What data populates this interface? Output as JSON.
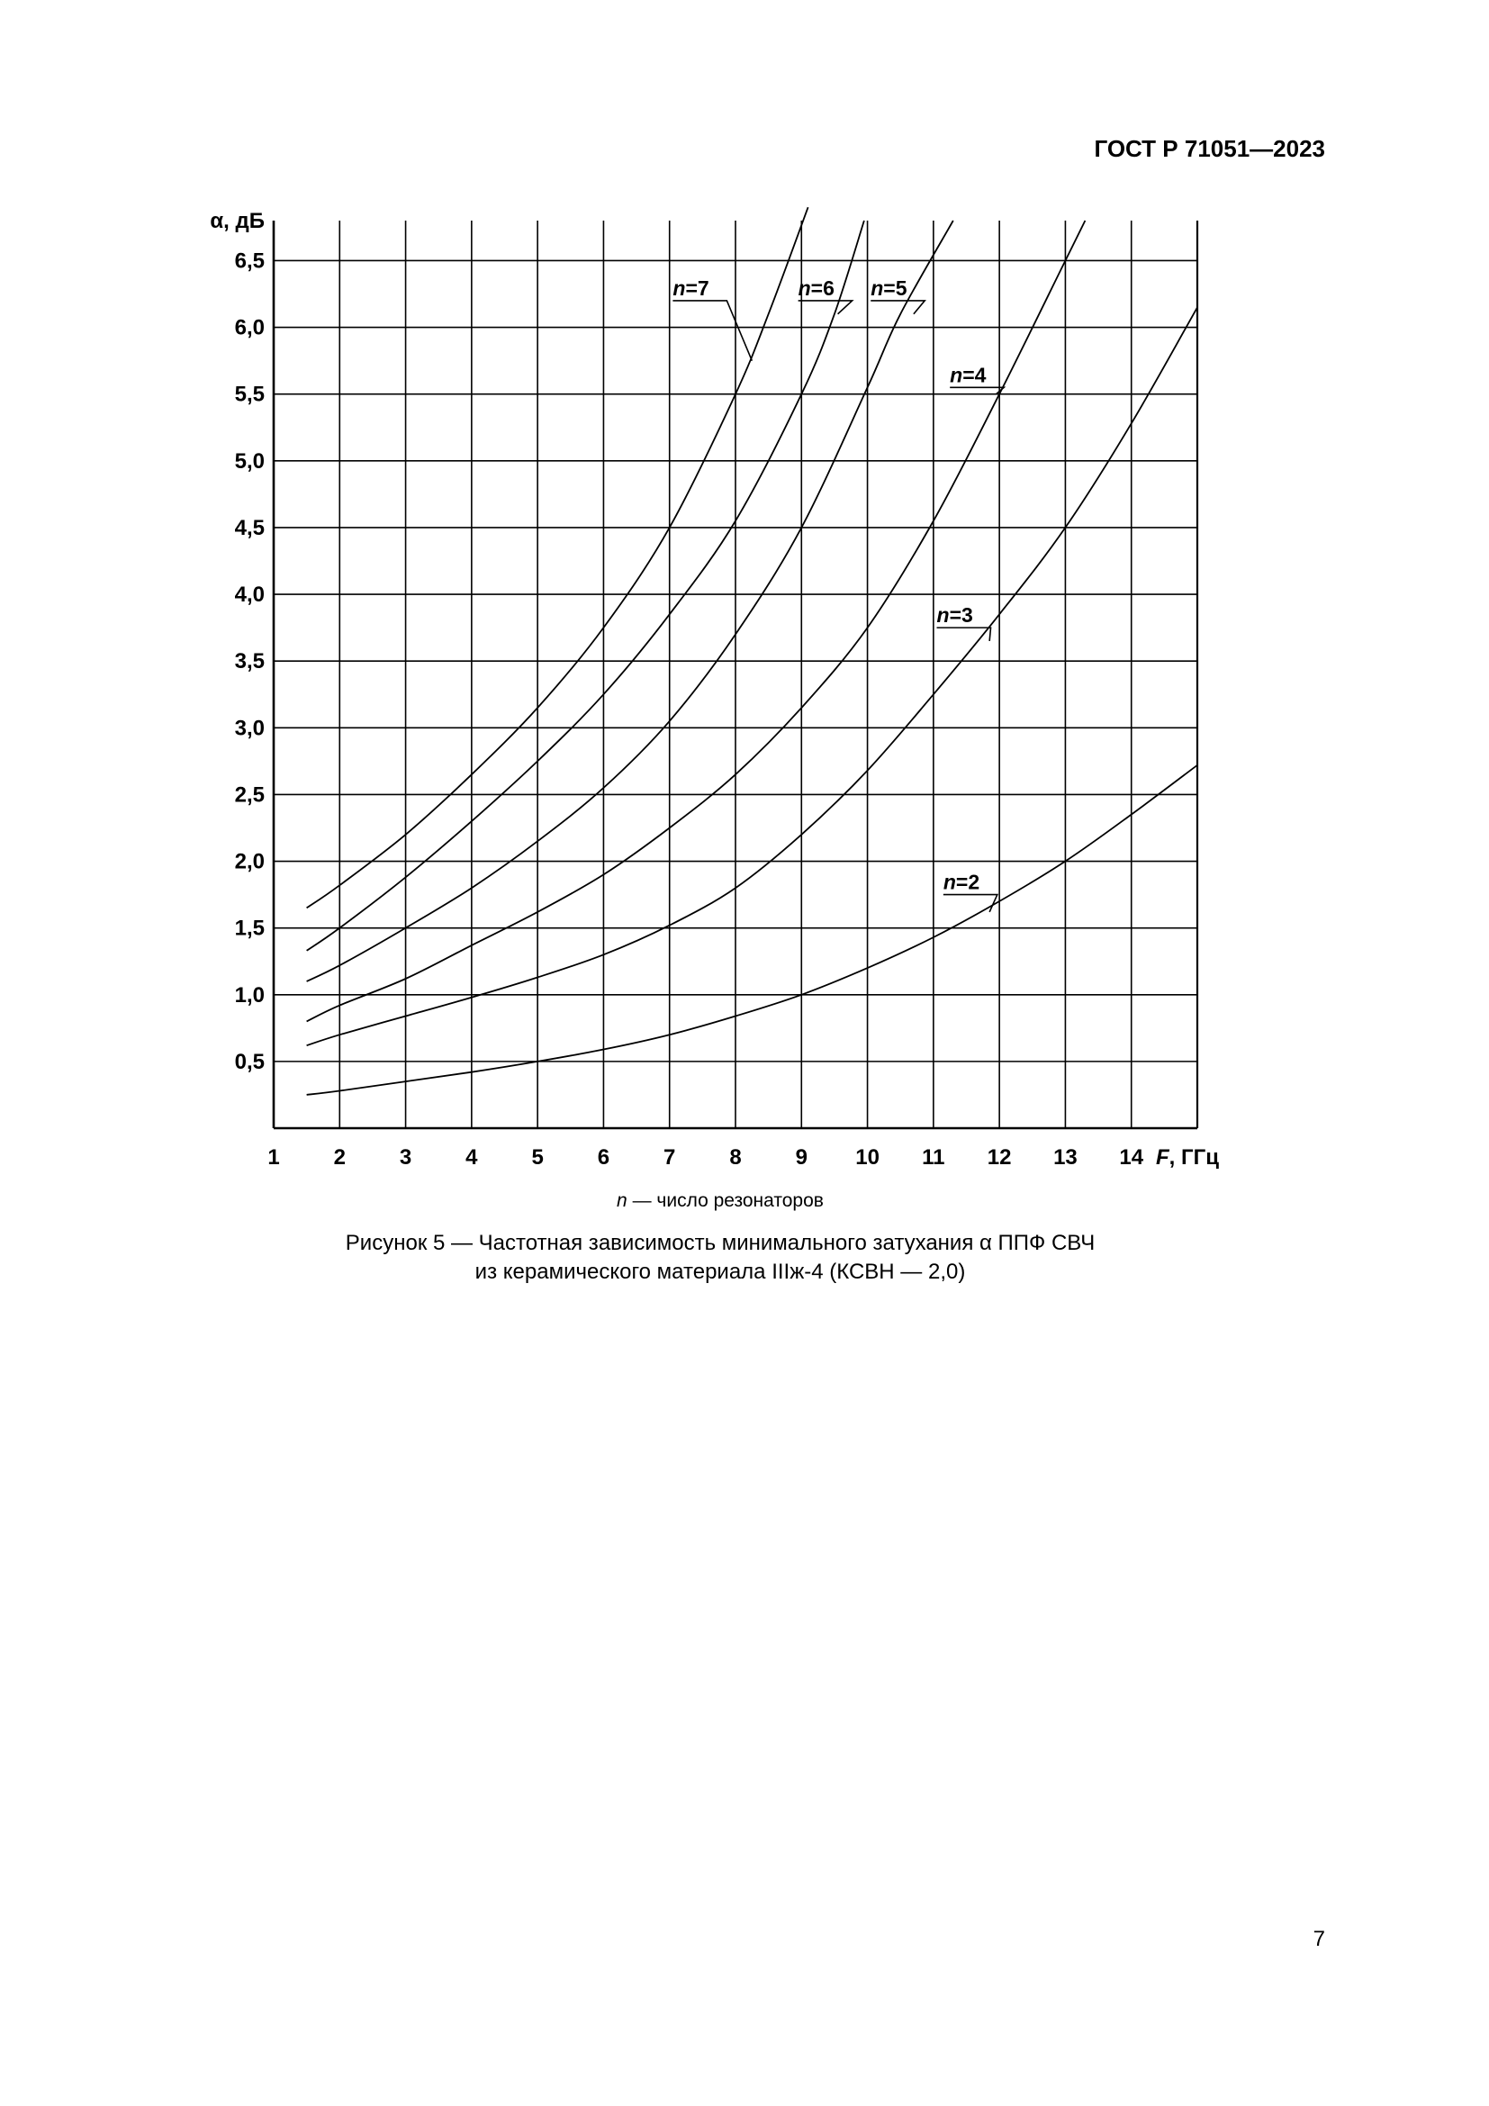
{
  "header": {
    "doc_id": "ГОСТ Р 71051—2023"
  },
  "chart_data": {
    "type": "line",
    "title": "",
    "xlabel_italic": "F",
    "xlabel_rest": ", ГГц",
    "ylabel": "α, дБ",
    "xlim": [
      1,
      15
    ],
    "ylim": [
      0,
      6.8
    ],
    "x_ticks": [
      "1",
      "2",
      "3",
      "4",
      "5",
      "6",
      "7",
      "8",
      "9",
      "10",
      "11",
      "12",
      "13",
      "14"
    ],
    "y_ticks": [
      "0,5",
      "1,0",
      "1,5",
      "2,0",
      "2,5",
      "3,0",
      "3,5",
      "4,0",
      "4,5",
      "5,0",
      "5,5",
      "6,0",
      "6,5"
    ],
    "grid": true,
    "series": [
      {
        "name": "n=2",
        "label_italic": "n",
        "label_rest": "=2",
        "points": [
          [
            1.5,
            0.25
          ],
          [
            2,
            0.28
          ],
          [
            3,
            0.35
          ],
          [
            4,
            0.42
          ],
          [
            5,
            0.5
          ],
          [
            6,
            0.59
          ],
          [
            7,
            0.7
          ],
          [
            8,
            0.84
          ],
          [
            9,
            1.0
          ],
          [
            10,
            1.2
          ],
          [
            11,
            1.43
          ],
          [
            12,
            1.7
          ],
          [
            13,
            2.0
          ],
          [
            14,
            2.35
          ],
          [
            15,
            2.72
          ]
        ]
      },
      {
        "name": "n=3",
        "label_italic": "n",
        "label_rest": "=3",
        "points": [
          [
            1.5,
            0.62
          ],
          [
            2,
            0.7
          ],
          [
            3,
            0.84
          ],
          [
            4,
            0.98
          ],
          [
            5,
            1.13
          ],
          [
            6,
            1.3
          ],
          [
            7,
            1.52
          ],
          [
            8,
            1.8
          ],
          [
            9,
            2.2
          ],
          [
            10,
            2.68
          ],
          [
            11,
            3.25
          ],
          [
            12,
            3.85
          ],
          [
            13,
            4.5
          ],
          [
            14,
            5.28
          ],
          [
            15,
            6.15
          ]
        ]
      },
      {
        "name": "n=4",
        "label_italic": "n",
        "label_rest": "=4",
        "points": [
          [
            1.5,
            0.8
          ],
          [
            2,
            0.92
          ],
          [
            3,
            1.12
          ],
          [
            4,
            1.37
          ],
          [
            5,
            1.62
          ],
          [
            6,
            1.9
          ],
          [
            7,
            2.25
          ],
          [
            8,
            2.65
          ],
          [
            9,
            3.15
          ],
          [
            10,
            3.75
          ],
          [
            11,
            4.55
          ],
          [
            12,
            5.5
          ],
          [
            13,
            6.5
          ],
          [
            13.3,
            6.8
          ]
        ]
      },
      {
        "name": "n=5",
        "label_italic": "n",
        "label_rest": "=5",
        "points": [
          [
            1.5,
            1.1
          ],
          [
            2,
            1.22
          ],
          [
            3,
            1.5
          ],
          [
            4,
            1.8
          ],
          [
            5,
            2.15
          ],
          [
            6,
            2.55
          ],
          [
            7,
            3.05
          ],
          [
            8,
            3.7
          ],
          [
            9,
            4.5
          ],
          [
            10,
            5.55
          ],
          [
            10.5,
            6.1
          ],
          [
            11.3,
            6.8
          ]
        ]
      },
      {
        "name": "n=6",
        "label_italic": "n",
        "label_rest": "=6",
        "points": [
          [
            1.5,
            1.33
          ],
          [
            2,
            1.5
          ],
          [
            3,
            1.88
          ],
          [
            4,
            2.3
          ],
          [
            5,
            2.75
          ],
          [
            6,
            3.25
          ],
          [
            7,
            3.85
          ],
          [
            8,
            4.55
          ],
          [
            9,
            5.5
          ],
          [
            9.5,
            6.1
          ],
          [
            9.95,
            6.8
          ]
        ]
      },
      {
        "name": "n=7",
        "label_italic": "n",
        "label_rest": "=7",
        "points": [
          [
            1.5,
            1.65
          ],
          [
            2,
            1.82
          ],
          [
            3,
            2.2
          ],
          [
            4,
            2.65
          ],
          [
            5,
            3.15
          ],
          [
            6,
            3.75
          ],
          [
            7,
            4.5
          ],
          [
            8,
            5.5
          ],
          [
            8.5,
            6.1
          ],
          [
            9.1,
            6.9
          ]
        ]
      }
    ]
  },
  "legend_note": {
    "italic": "n",
    "rest": " — число резонаторов"
  },
  "caption": {
    "line1": "Рисунок 5 — Частотная зависимость минимального затухания α ППФ СВЧ",
    "line2": "из керамического материала IIIж-4 (КСВН — 2,0)"
  },
  "page_number": "7"
}
